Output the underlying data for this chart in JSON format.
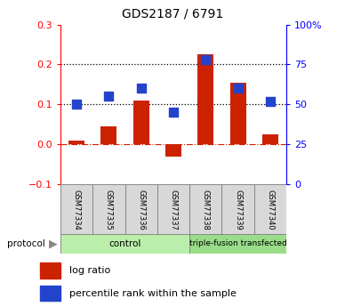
{
  "title": "GDS2187 / 6791",
  "samples": [
    "GSM77334",
    "GSM77335",
    "GSM77336",
    "GSM77337",
    "GSM77338",
    "GSM77339",
    "GSM77340"
  ],
  "log_ratio": [
    0.01,
    0.045,
    0.11,
    -0.03,
    0.225,
    0.155,
    0.025
  ],
  "percentile_rank_pct": [
    50,
    55,
    60,
    45,
    78,
    60,
    52
  ],
  "left_ylim": [
    -0.1,
    0.3
  ],
  "right_ylim": [
    0,
    100
  ],
  "left_yticks": [
    -0.1,
    0.0,
    0.1,
    0.2,
    0.3
  ],
  "right_yticks": [
    0,
    25,
    50,
    75,
    100
  ],
  "right_yticklabels": [
    "0",
    "25",
    "50",
    "75",
    "100%"
  ],
  "hlines": [
    0.1,
    0.2
  ],
  "bar_color": "#cc2200",
  "dot_color": "#2244cc",
  "zero_line_color": "#cc2200",
  "control_color": "#bbeeaa",
  "transfected_color": "#99dd88",
  "control_label": "control",
  "transfected_label": "triple-fusion transfected",
  "control_count": 4,
  "protocol_label": "protocol",
  "legend_log_ratio": "log ratio",
  "legend_percentile": "percentile rank within the sample",
  "bar_width": 0.5,
  "dot_size": 45
}
